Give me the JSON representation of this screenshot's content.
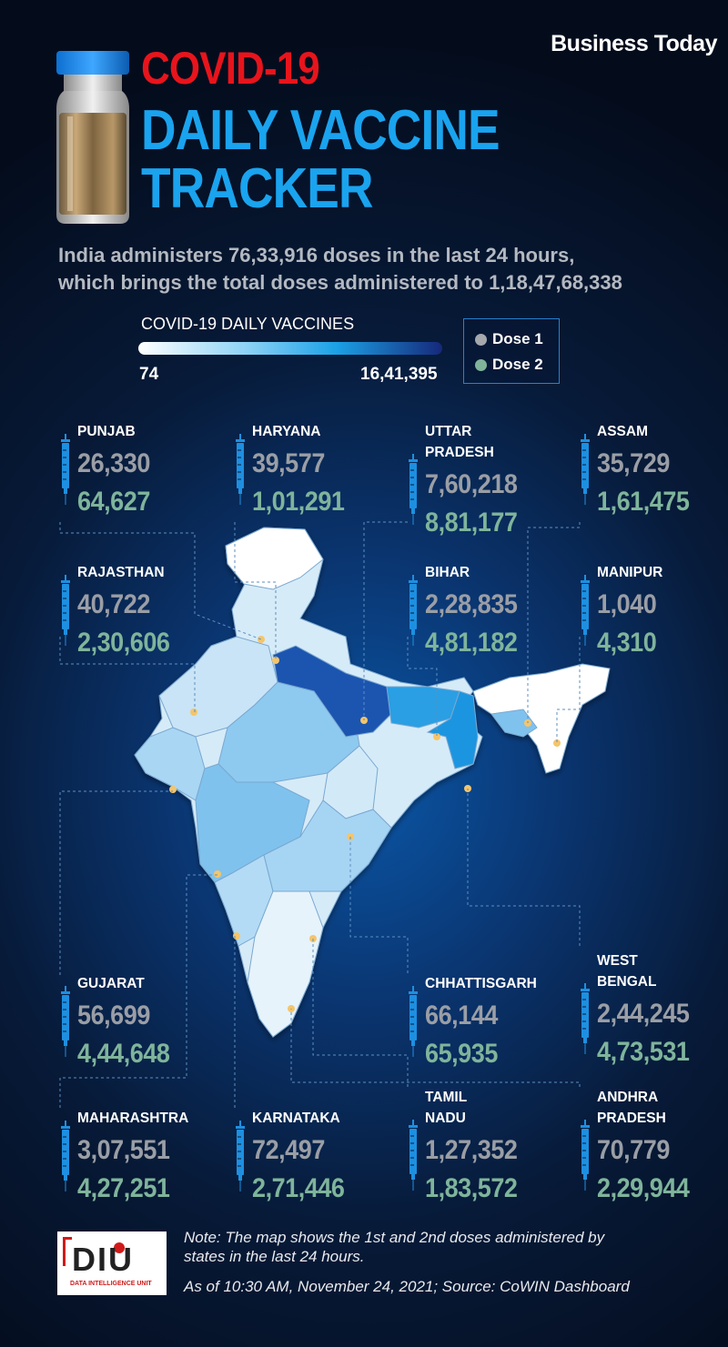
{
  "brand": "Business Today",
  "title_line1": "COVID-19",
  "title_line2": "DAILY VACCINE",
  "title_line3": "TRACKER",
  "subtitle_line1": "India administers 76,33,916 doses in the last 24 hours,",
  "subtitle_line2": "which brings the total doses administered to 1,18,47,68,338",
  "legend": {
    "title": "COVID-19 DAILY VACCINES",
    "min": "74",
    "max": "16,41,395"
  },
  "dose_legend": [
    {
      "label": "Dose 1",
      "color": "#a5a8ad"
    },
    {
      "label": "Dose 2",
      "color": "#7fb49b"
    }
  ],
  "states": [
    {
      "name": [
        "PUNJAB"
      ],
      "dose1": "26,330",
      "dose2": "64,627"
    },
    {
      "name": [
        "HARYANA"
      ],
      "dose1": "39,577",
      "dose2": "1,01,291"
    },
    {
      "name": [
        "UTTAR",
        "PRADESH"
      ],
      "dose1": "7,60,218",
      "dose2": "8,81,177"
    },
    {
      "name": [
        "ASSAM"
      ],
      "dose1": "35,729",
      "dose2": "1,61,475"
    },
    {
      "name": [
        "RAJASTHAN"
      ],
      "dose1": "40,722",
      "dose2": "2,30,606"
    },
    {
      "name": [
        "BIHAR"
      ],
      "dose1": "2,28,835",
      "dose2": "4,81,182"
    },
    {
      "name": [
        "MANIPUR"
      ],
      "dose1": "1,040",
      "dose2": "4,310"
    },
    {
      "name": [
        "GUJARAT"
      ],
      "dose1": "56,699",
      "dose2": "4,44,648"
    },
    {
      "name": [
        "CHHATTISGARH"
      ],
      "dose1": "66,144",
      "dose2": "65,935"
    },
    {
      "name": [
        "WEST",
        "BENGAL"
      ],
      "dose1": "2,44,245",
      "dose2": "4,73,531"
    },
    {
      "name": [
        "MAHARASHTRA"
      ],
      "dose1": "3,07,551",
      "dose2": "4,27,251"
    },
    {
      "name": [
        "KARNATAKA"
      ],
      "dose1": "72,497",
      "dose2": "2,71,446"
    },
    {
      "name": [
        "TAMIL",
        "NADU"
      ],
      "dose1": "1,27,352",
      "dose2": "1,83,572"
    },
    {
      "name": [
        "ANDHRA",
        "PRADESH"
      ],
      "dose1": "70,779",
      "dose2": "2,29,944"
    }
  ],
  "footer": {
    "logo_text": "DIU",
    "logo_sub": "DATA INTELLIGENCE UNIT",
    "note_line1": "Note: The map shows the 1st and 2nd doses administered by",
    "note_line2": "states in the last 24 hours.",
    "as_of": "As of 10:30 AM, November 24, 2021; Source: CoWIN Dashboard"
  },
  "colors": {
    "title_red": "#e8141c",
    "title_blue": "#1aa3ee",
    "syringe": "#1e8fe0",
    "map_dot": "#f5c56a"
  }
}
